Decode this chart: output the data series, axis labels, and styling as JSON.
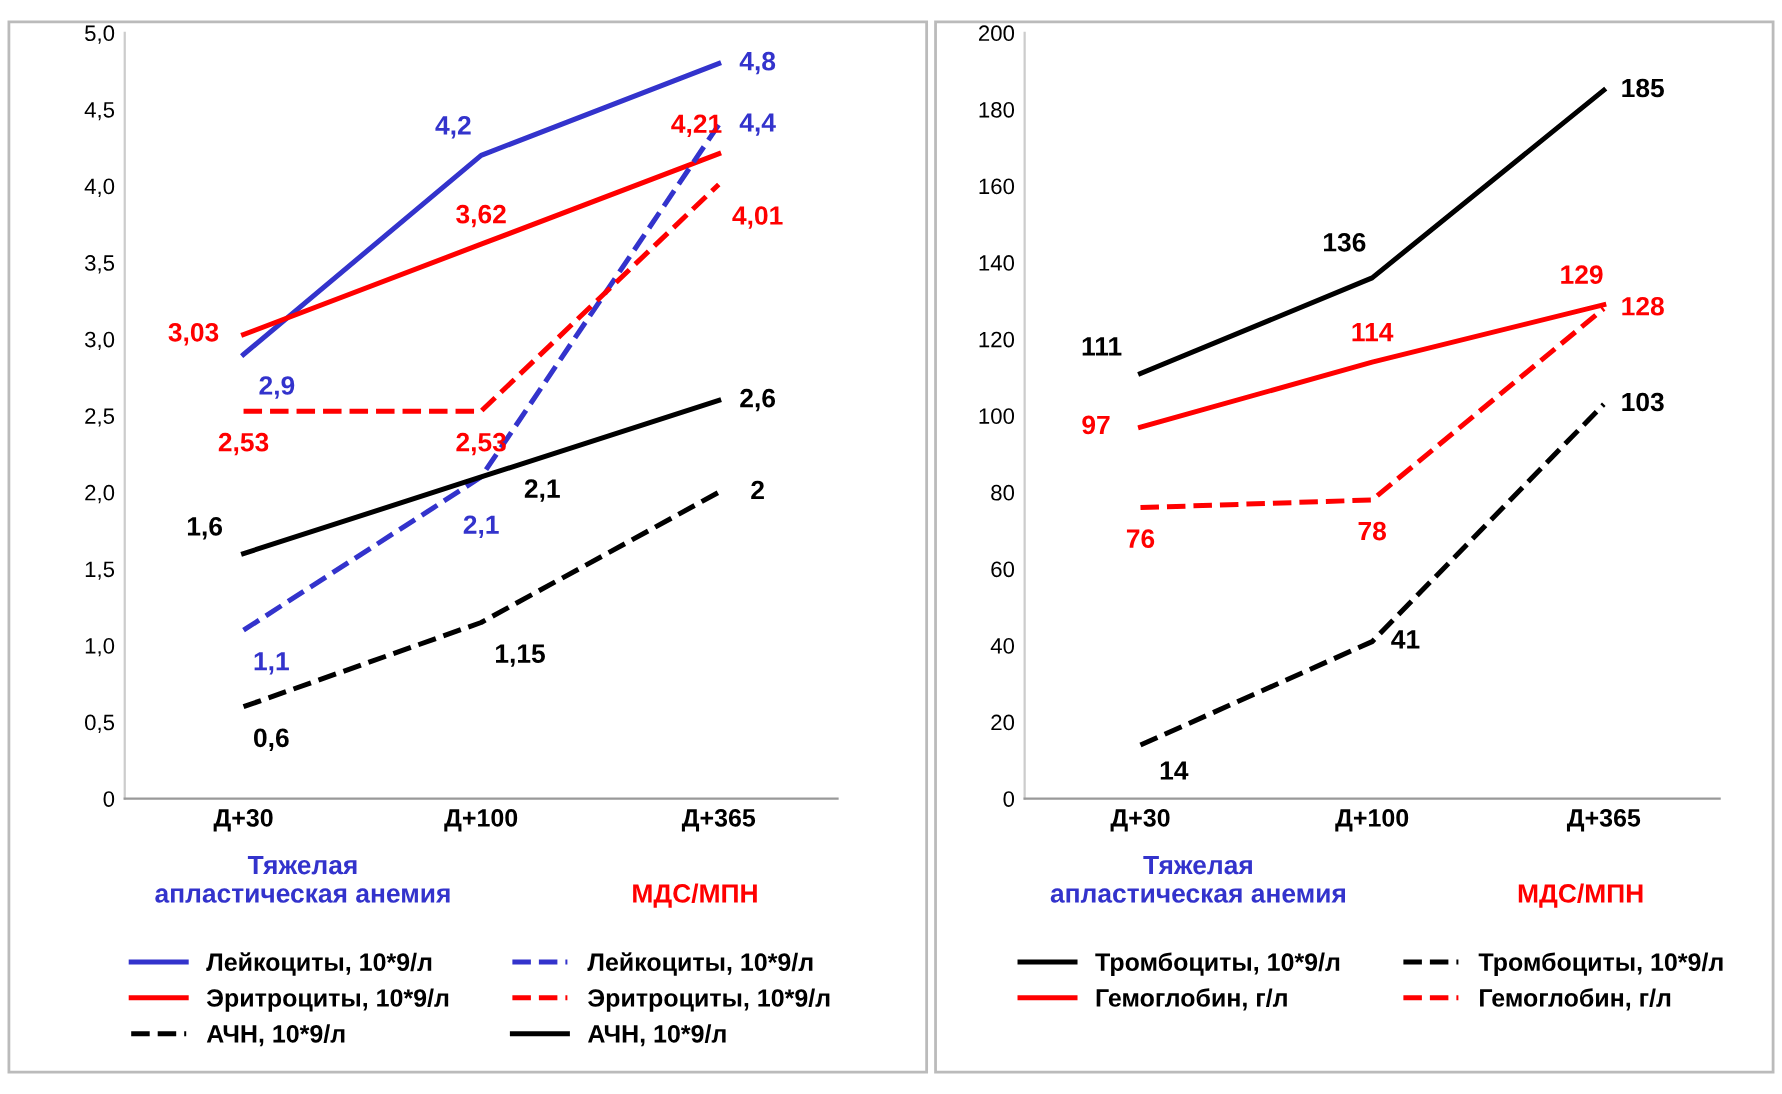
{
  "chart_data": [
    {
      "type": "line",
      "categories": [
        "Д+30",
        "Д+100",
        "Д+365"
      ],
      "ylim": [
        0,
        5
      ],
      "yticks": [
        {
          "value": 0,
          "label": "0"
        },
        {
          "value": 0.5,
          "label": "0,5"
        },
        {
          "value": 1,
          "label": "1,0"
        },
        {
          "value": 1.5,
          "label": "1,5"
        },
        {
          "value": 2,
          "label": "2,0"
        },
        {
          "value": 2.5,
          "label": "2,5"
        },
        {
          "value": 3,
          "label": "3,0"
        },
        {
          "value": 3.5,
          "label": "3,5"
        },
        {
          "value": 4,
          "label": "4,0"
        },
        {
          "value": 4.5,
          "label": "4,5"
        },
        {
          "value": 5,
          "label": "5,0"
        }
      ],
      "grid": false,
      "legend": "bottom",
      "marker": "none",
      "annotations": [
        "Тяжелая\nапластическая анемия",
        "МДС/МПН"
      ],
      "series": [
        {
          "name": "Лейкоциты, 10*9/л",
          "color": "#3333cc",
          "line_style": "solid",
          "values": [
            2.9,
            4.2,
            4.8
          ],
          "value_labels": [
            "2,9",
            "4,2",
            "4,8"
          ]
        },
        {
          "name": "Эритроциты, 10*9/л",
          "color": "#ff0000",
          "line_style": "solid",
          "values": [
            3.03,
            3.62,
            4.21
          ],
          "value_labels": [
            "3,03",
            "3,62",
            "4,21"
          ]
        },
        {
          "name": "АЧН, 10*9/л",
          "color": "#000000",
          "line_style": "dashed",
          "values": [
            0.6,
            1.15,
            2
          ],
          "value_labels": [
            "0,6",
            "1,15",
            "2"
          ]
        },
        {
          "name": "Лейкоциты, 10*9/л",
          "color": "#3333cc",
          "line_style": "dashed",
          "values": [
            1.1,
            2.1,
            4.4
          ],
          "value_labels": [
            "1,1",
            "2,1",
            "4,4"
          ]
        },
        {
          "name": "Эритроциты, 10*9/л",
          "color": "#ff0000",
          "line_style": "dashed",
          "values": [
            2.53,
            2.53,
            4.01
          ],
          "value_labels": [
            "2,53",
            "2,53",
            "4,01"
          ]
        },
        {
          "name": "АЧН, 10*9/л",
          "color": "#000000",
          "line_style": "solid",
          "values": [
            1.6,
            2.1,
            2.6
          ],
          "value_labels": [
            "1,6",
            "2,1",
            "2,6"
          ]
        }
      ]
    },
    {
      "type": "line",
      "categories": [
        "Д+30",
        "Д+100",
        "Д+365"
      ],
      "ylim": [
        0,
        200
      ],
      "yticks": [
        0,
        20,
        40,
        60,
        80,
        100,
        120,
        140,
        160,
        180,
        200
      ],
      "grid": false,
      "legend": "bottom",
      "marker": "none",
      "data_labels": true,
      "annotations": [
        "Тяжелая\nапластическая анемия",
        "МДС/МПН"
      ],
      "series": [
        {
          "name": "Тромбоциты, 10*9/л",
          "color": "#000000",
          "line_style": "solid",
          "values": [
            111,
            136,
            185
          ]
        },
        {
          "name": "Гемоглобин, г/л",
          "color": "#ff0000",
          "line_style": "solid",
          "values": [
            97,
            114,
            129
          ]
        },
        {
          "name": "Тромбоциты, 10*9/л",
          "color": "#000000",
          "line_style": "dashed",
          "values": [
            14,
            41,
            103
          ]
        },
        {
          "name": "Гемоглобин, г/л",
          "color": "#ff0000",
          "line_style": "dashed",
          "values": [
            76,
            78,
            128
          ]
        }
      ]
    }
  ]
}
